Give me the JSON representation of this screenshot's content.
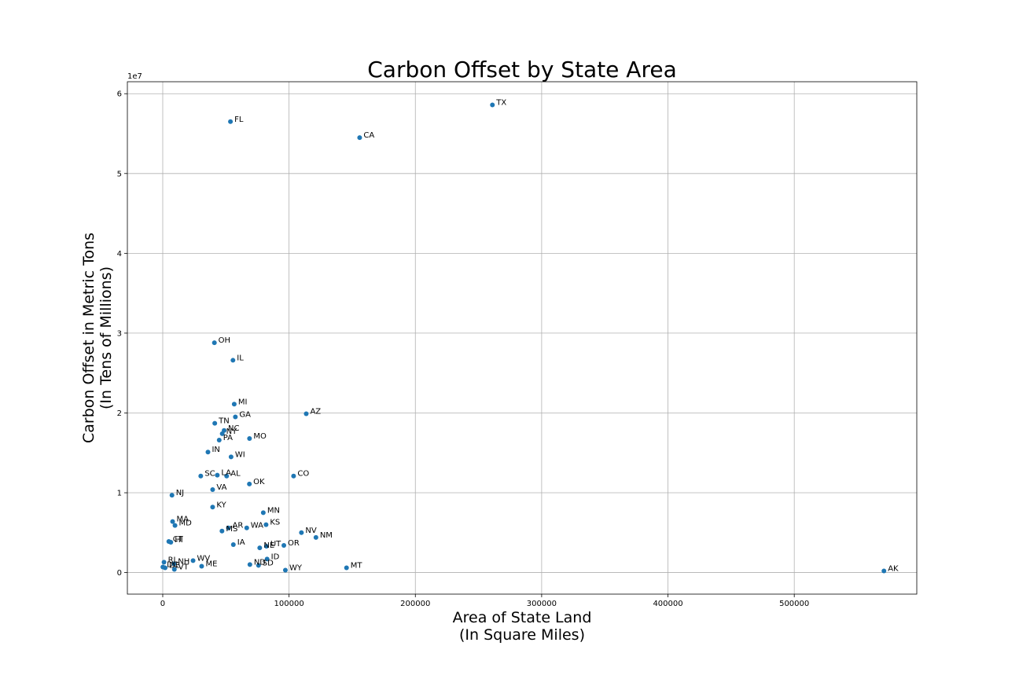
{
  "chart_data": {
    "type": "scatter",
    "title": "Carbon Offset by State Area",
    "xlabel": [
      "Area of State Land",
      "(In Square Miles)"
    ],
    "ylabel": [
      "Carbon Offset in Metric Tons",
      "(In Tens of Millions)"
    ],
    "y_offset_label": "1e7",
    "xlim": [
      -28000,
      597000
    ],
    "ylim": [
      -2700000,
      61500000
    ],
    "x_ticks": [
      0,
      100000,
      200000,
      300000,
      400000,
      500000
    ],
    "x_tick_labels": [
      "0",
      "100000",
      "200000",
      "300000",
      "400000",
      "500000"
    ],
    "y_ticks": [
      0,
      10000000,
      20000000,
      30000000,
      40000000,
      50000000,
      60000000
    ],
    "y_tick_labels": [
      "0",
      "1",
      "2",
      "3",
      "4",
      "5",
      "6"
    ],
    "grid": true,
    "point_color": "#1f77b4",
    "points": [
      {
        "label": "TX",
        "x": 261000,
        "y": 58600000
      },
      {
        "label": "FL",
        "x": 53600,
        "y": 56500000
      },
      {
        "label": "CA",
        "x": 155900,
        "y": 54500000
      },
      {
        "label": "OH",
        "x": 40900,
        "y": 28800000
      },
      {
        "label": "IL",
        "x": 55600,
        "y": 26600000
      },
      {
        "label": "MI",
        "x": 56600,
        "y": 21100000
      },
      {
        "label": "AZ",
        "x": 113600,
        "y": 19900000
      },
      {
        "label": "GA",
        "x": 57500,
        "y": 19500000
      },
      {
        "label": "TN",
        "x": 41200,
        "y": 18700000
      },
      {
        "label": "NC",
        "x": 48600,
        "y": 17800000
      },
      {
        "label": "NY",
        "x": 47100,
        "y": 17400000
      },
      {
        "label": "MO",
        "x": 68700,
        "y": 16800000
      },
      {
        "label": "PA",
        "x": 44700,
        "y": 16600000
      },
      {
        "label": "IN",
        "x": 35800,
        "y": 15100000
      },
      {
        "label": "WI",
        "x": 54100,
        "y": 14500000
      },
      {
        "label": "SC",
        "x": 30100,
        "y": 12100000
      },
      {
        "label": "LA",
        "x": 43200,
        "y": 12200000
      },
      {
        "label": "AL",
        "x": 50600,
        "y": 12100000
      },
      {
        "label": "CO",
        "x": 103600,
        "y": 12100000
      },
      {
        "label": "OK",
        "x": 68600,
        "y": 11100000
      },
      {
        "label": "VA",
        "x": 39500,
        "y": 10400000
      },
      {
        "label": "NJ",
        "x": 7300,
        "y": 9700000
      },
      {
        "label": "KY",
        "x": 39500,
        "y": 8200000
      },
      {
        "label": "MN",
        "x": 79600,
        "y": 7500000
      },
      {
        "label": "MA",
        "x": 7800,
        "y": 6400000
      },
      {
        "label": "KS",
        "x": 81800,
        "y": 6000000
      },
      {
        "label": "MD",
        "x": 9700,
        "y": 5900000
      },
      {
        "label": "AR",
        "x": 52000,
        "y": 5600000
      },
      {
        "label": "WA",
        "x": 66500,
        "y": 5600000
      },
      {
        "label": "MS",
        "x": 46900,
        "y": 5200000
      },
      {
        "label": "NV",
        "x": 109800,
        "y": 5000000
      },
      {
        "label": "NM",
        "x": 121300,
        "y": 4400000
      },
      {
        "label": "CT",
        "x": 4800,
        "y": 3900000
      },
      {
        "label": "HI",
        "x": 6400,
        "y": 3800000
      },
      {
        "label": "IA",
        "x": 55900,
        "y": 3500000
      },
      {
        "label": "OR",
        "x": 95900,
        "y": 3400000
      },
      {
        "label": "UT",
        "x": 82100,
        "y": 3300000
      },
      {
        "label": "NE",
        "x": 76800,
        "y": 3100000
      },
      {
        "label": "ID",
        "x": 82600,
        "y": 1700000
      },
      {
        "label": "WV",
        "x": 24000,
        "y": 1500000
      },
      {
        "label": "RI",
        "x": 1000,
        "y": 1300000
      },
      {
        "label": "NH",
        "x": 8900,
        "y": 1100000
      },
      {
        "label": "ND",
        "x": 69000,
        "y": 1000000
      },
      {
        "label": "SD",
        "x": 75800,
        "y": 900000
      },
      {
        "label": "ME",
        "x": 30800,
        "y": 800000
      },
      {
        "label": "MT",
        "x": 145500,
        "y": 600000
      },
      {
        "label": "DE",
        "x": 1900,
        "y": 600000
      },
      {
        "label": "DC",
        "x": 100,
        "y": 700000
      },
      {
        "label": "VT",
        "x": 9200,
        "y": 400000
      },
      {
        "label": "WY",
        "x": 97100,
        "y": 300000
      },
      {
        "label": "AK",
        "x": 571000,
        "y": 200000
      }
    ]
  }
}
